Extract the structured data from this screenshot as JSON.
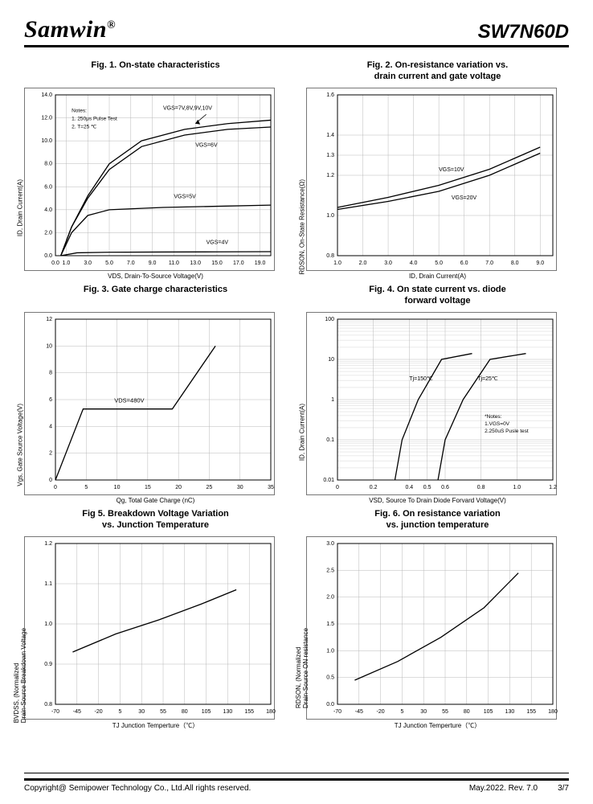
{
  "header": {
    "brand": "Samwin",
    "brand_sup": "®",
    "part": "SW7N60D"
  },
  "footer": {
    "copyright": "Copyright@ Semipower Technology Co., Ltd.All rights reserved.",
    "rev": "May.2022. Rev. 7.0",
    "page": "3/7"
  },
  "colors": {
    "axis": "#000000",
    "grid": "#b8b8b8",
    "line": "#000000",
    "bg": "#ffffff"
  },
  "figs": {
    "f1": {
      "title": "Fig. 1. On-state characteristics",
      "xlabel": "VDS, Drain-To-Source Voltage(V)",
      "ylabel": "ID,  Drain Current(A)",
      "xlim": [
        0,
        20
      ],
      "xticks": [
        0,
        1,
        3,
        5,
        7,
        9,
        11,
        13,
        15,
        17,
        19
      ],
      "xtick_labels": [
        "0.0",
        "1.0",
        "3.0",
        "5.0",
        "7.0",
        "9.0",
        "11.0",
        "13.0",
        "15.0",
        "17.0",
        "19.0"
      ],
      "ylim": [
        0,
        14
      ],
      "yticks": [
        0,
        2,
        4,
        6,
        8,
        10,
        12,
        14
      ],
      "ytick_labels": [
        "0.0",
        "2.0",
        "4.0",
        "6.0",
        "8.0",
        "10.0",
        "12.0",
        "14.0"
      ],
      "notes": [
        "Notes:",
        "1. 250μs Pulse Test",
        "2. T=25 ℃"
      ],
      "arrow_label": "VGS=7V,8V,9V,10V",
      "curves": [
        {
          "label": "VGS=4V",
          "pts": [
            [
              0.5,
              0
            ],
            [
              2,
              0.25
            ],
            [
              5,
              0.3
            ],
            [
              10,
              0.32
            ],
            [
              15,
              0.33
            ],
            [
              20,
              0.35
            ]
          ]
        },
        {
          "label": "VGS=5V",
          "pts": [
            [
              0.5,
              0
            ],
            [
              1.5,
              2
            ],
            [
              3,
              3.5
            ],
            [
              5,
              4
            ],
            [
              10,
              4.2
            ],
            [
              15,
              4.3
            ],
            [
              20,
              4.4
            ]
          ]
        },
        {
          "label": "VGS=6V",
          "pts": [
            [
              0.5,
              0
            ],
            [
              1.5,
              2.5
            ],
            [
              3,
              5
            ],
            [
              5,
              7.5
            ],
            [
              8,
              9.5
            ],
            [
              12,
              10.5
            ],
            [
              16,
              11
            ],
            [
              20,
              11.2
            ]
          ]
        },
        {
          "label": "VGS=7V,8V,9V,10V",
          "pts": [
            [
              0.5,
              0
            ],
            [
              1.5,
              2.5
            ],
            [
              3,
              5.2
            ],
            [
              5,
              8
            ],
            [
              8,
              10
            ],
            [
              12,
              11
            ],
            [
              16,
              11.5
            ],
            [
              20,
              11.8
            ]
          ]
        }
      ],
      "labels_pos": {
        "VGS=4V": [
          14,
          1
        ],
        "VGS=5V": [
          11,
          5
        ],
        "VGS=6V": [
          13,
          9.5
        ]
      }
    },
    "f2": {
      "title": "Fig. 2. On-resistance variation vs.\ndrain current and gate voltage",
      "xlabel": "ID, Drain Current(A)",
      "ylabel": "RDSON, On-State Resistance(Ω)",
      "xlim": [
        1,
        9.5
      ],
      "xticks": [
        1,
        2,
        3,
        4,
        5,
        6,
        7,
        8,
        9
      ],
      "xtick_labels": [
        "1.0",
        "2.0",
        "3.0",
        "4.0",
        "5.0",
        "6.0",
        "7.0",
        "8.0",
        "9.0"
      ],
      "ylim": [
        0.8,
        1.6
      ],
      "yticks": [
        0.8,
        1.0,
        1.2,
        1.3,
        1.4,
        1.6
      ],
      "ytick_labels": [
        "0.8",
        "1.0",
        "1.2",
        "1.3",
        "1.4",
        "1.6"
      ],
      "curves": [
        {
          "label": "VGS=10V",
          "pts": [
            [
              1,
              1.04
            ],
            [
              3,
              1.09
            ],
            [
              5,
              1.15
            ],
            [
              7,
              1.23
            ],
            [
              9,
              1.34
            ]
          ]
        },
        {
          "label": "VGS=20V",
          "pts": [
            [
              1,
              1.03
            ],
            [
              3,
              1.07
            ],
            [
              5,
              1.12
            ],
            [
              7,
              1.2
            ],
            [
              9,
              1.31
            ]
          ]
        }
      ],
      "labels_pos": {
        "VGS=10V": [
          5,
          1.22
        ],
        "VGS=20V": [
          5.5,
          1.08
        ]
      }
    },
    "f3": {
      "title": "Fig. 3. Gate charge characteristics",
      "xlabel": "Qg, Total Gate Charge (nC)",
      "ylabel": "Vgs,  Gate Source Voltage(V)",
      "xlim": [
        0,
        35
      ],
      "xticks": [
        0,
        5,
        10,
        15,
        20,
        25,
        30,
        35
      ],
      "xtick_labels": [
        "0",
        "5",
        "10",
        "15",
        "20",
        "25",
        "30",
        "35"
      ],
      "ylim": [
        0,
        12
      ],
      "yticks": [
        0,
        2,
        4,
        6,
        8,
        10,
        12
      ],
      "ytick_labels": [
        "0",
        "2",
        "4",
        "6",
        "8",
        "10",
        "12"
      ],
      "label_mid": "VDS=480V",
      "curve": [
        [
          0,
          0
        ],
        [
          4.5,
          5.3
        ],
        [
          19,
          5.3
        ],
        [
          26,
          10
        ]
      ]
    },
    "f4": {
      "title": "Fig. 4. On state current vs. diode\nforward voltage",
      "xlabel": "VSD, Source To Drain Diode Forvard Voltage(V)",
      "ylabel": "ID,  Drain Current(A)",
      "xlim": [
        0,
        1.2
      ],
      "xticks": [
        0,
        0.2,
        0.4,
        0.5,
        0.6,
        0.8,
        1.0,
        1.2
      ],
      "xtick_labels": [
        "0",
        "0.2",
        "0.4",
        "0.5",
        "0.6",
        "0.8",
        "1.0",
        "1.2"
      ],
      "ylog": true,
      "ylim": [
        0.01,
        100
      ],
      "yticks": [
        0.01,
        0.1,
        1,
        10,
        100
      ],
      "ytick_labels": [
        "0.01",
        "0.1",
        "1",
        "10",
        "100"
      ],
      "notes": [
        "*Notes:",
        "1.VGS=0V",
        "2.250uS Pusle test"
      ],
      "curves": [
        {
          "label": "Tj=150℃",
          "pts": [
            [
              0.32,
              0.01
            ],
            [
              0.36,
              0.1
            ],
            [
              0.45,
              1
            ],
            [
              0.58,
              10
            ],
            [
              0.75,
              14
            ]
          ]
        },
        {
          "label": "Tj=25℃",
          "pts": [
            [
              0.56,
              0.01
            ],
            [
              0.6,
              0.1
            ],
            [
              0.7,
              1
            ],
            [
              0.85,
              10
            ],
            [
              1.05,
              14
            ]
          ]
        }
      ],
      "labels_pos": {
        "Tj=150℃": [
          0.4,
          3
        ],
        "Tj=25℃": [
          0.78,
          3
        ]
      }
    },
    "f5": {
      "title": "Fig 5. Breakdown Voltage Variation\nvs. Junction Temperature",
      "xlabel": "TJ Junction Temperture（℃）",
      "ylabel": "BVDSS, (Normalized\nDrain-Source Breakdown Voltage",
      "xlim": [
        -70,
        180
      ],
      "xticks": [
        -70,
        -45,
        -20,
        5,
        30,
        55,
        80,
        105,
        130,
        155,
        180
      ],
      "xtick_labels": [
        "-70",
        "-45",
        "-20",
        "5",
        "30",
        "55",
        "80",
        "105",
        "130",
        "155",
        "180"
      ],
      "ylim": [
        0.8,
        1.2
      ],
      "yticks": [
        0.8,
        0.9,
        1.0,
        1.1,
        1.2
      ],
      "ytick_labels": [
        "0.8",
        "0.9",
        "1.0",
        "1.1",
        "1.2"
      ],
      "curve": [
        [
          -50,
          0.93
        ],
        [
          0,
          0.975
        ],
        [
          50,
          1.01
        ],
        [
          100,
          1.05
        ],
        [
          140,
          1.085
        ]
      ]
    },
    "f6": {
      "title": "Fig. 6. On resistance variation\nvs. junction temperature",
      "xlabel": "TJ Junction Temperture（℃）",
      "ylabel": "RDSON, (Normalized\nDrain-Source ON resistance",
      "xlim": [
        -70,
        180
      ],
      "xticks": [
        -70,
        -45,
        -20,
        5,
        30,
        55,
        80,
        105,
        130,
        155,
        180
      ],
      "xtick_labels": [
        "-70",
        "-45",
        "-20",
        "5",
        "30",
        "55",
        "80",
        "105",
        "130",
        "155",
        "180"
      ],
      "ylim": [
        0,
        3
      ],
      "yticks": [
        0,
        0.5,
        1.0,
        1.5,
        2.0,
        2.5,
        3.0
      ],
      "ytick_labels": [
        "0.0",
        "0.5",
        "1.0",
        "1.5",
        "2.0",
        "2.5",
        "3.0"
      ],
      "curve": [
        [
          -50,
          0.45
        ],
        [
          0,
          0.8
        ],
        [
          50,
          1.25
        ],
        [
          100,
          1.8
        ],
        [
          140,
          2.45
        ]
      ]
    }
  }
}
